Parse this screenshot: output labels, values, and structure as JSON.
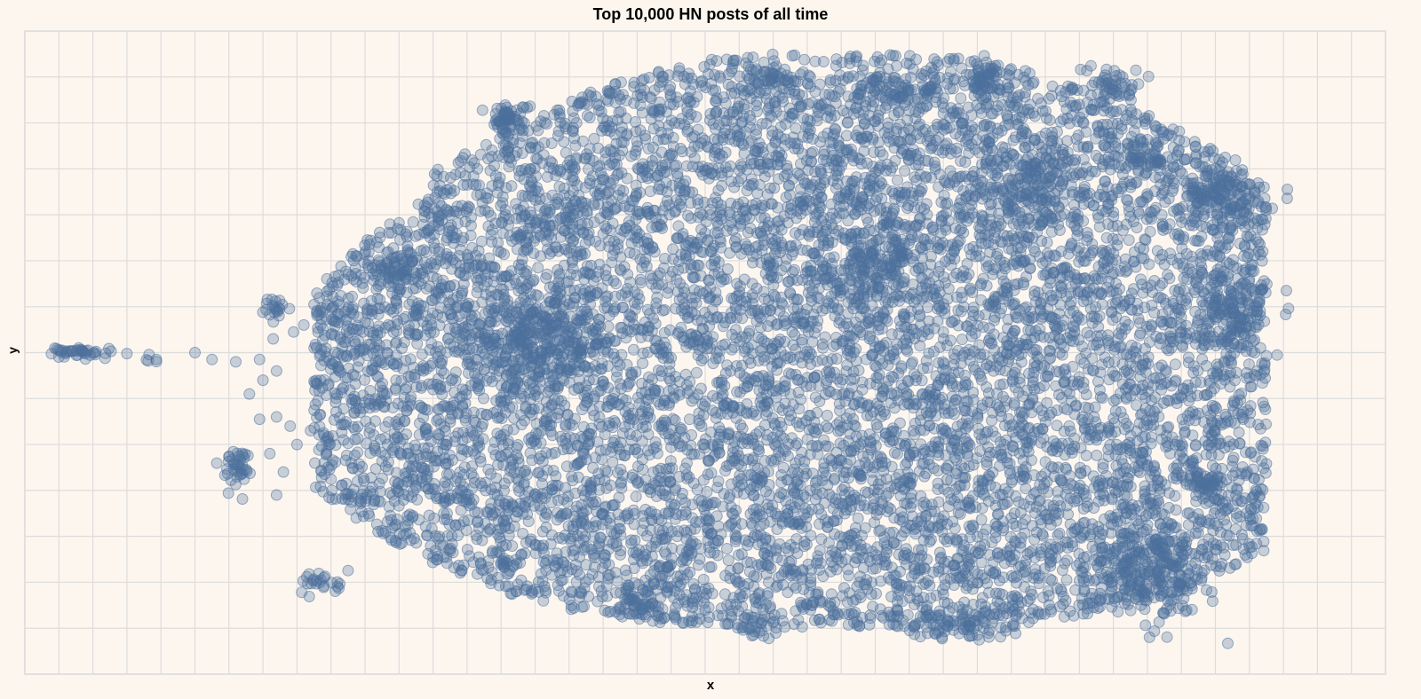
{
  "chart_data": {
    "type": "scatter",
    "title": "Top 10,000 HN posts of all time",
    "xlabel": "x",
    "ylabel": "y",
    "xlim": [
      0,
      40
    ],
    "ylim": [
      -7,
      7
    ],
    "grid": true,
    "tick_labels_shown": false,
    "point_count": 10000,
    "marker_color": "#4c6f9c",
    "marker_opacity": 0.3,
    "point_cloud": {
      "description_values": "estimated cluster centers in data units",
      "clusters": [
        {
          "x": 1.6,
          "y": 0.0,
          "sx": 0.5,
          "sy": 0.07,
          "n": 40
        },
        {
          "x": 3.6,
          "y": -0.1,
          "sx": 0.25,
          "sy": 0.1,
          "n": 6
        },
        {
          "x": 6.2,
          "y": -2.5,
          "sx": 0.2,
          "sy": 0.2,
          "n": 40
        },
        {
          "x": 7.4,
          "y": 1.0,
          "sx": 0.2,
          "sy": 0.12,
          "n": 20
        },
        {
          "x": 14.2,
          "y": 5.1,
          "sx": 0.3,
          "sy": 0.15,
          "n": 60
        },
        {
          "x": 10.9,
          "y": 1.8,
          "sx": 0.5,
          "sy": 0.18,
          "n": 60
        },
        {
          "x": 15.0,
          "y": 0.3,
          "sx": 1.0,
          "sy": 0.6,
          "n": 250
        },
        {
          "x": 18.1,
          "y": -5.5,
          "sx": 0.4,
          "sy": 0.2,
          "n": 40
        },
        {
          "x": 8.8,
          "y": -5.0,
          "sx": 0.3,
          "sy": 0.12,
          "n": 25
        },
        {
          "x": 22.0,
          "y": 6.0,
          "sx": 0.5,
          "sy": 0.1,
          "n": 40
        },
        {
          "x": 28.2,
          "y": 5.9,
          "sx": 0.3,
          "sy": 0.2,
          "n": 50
        },
        {
          "x": 32.0,
          "y": 5.8,
          "sx": 0.4,
          "sy": 0.2,
          "n": 50
        },
        {
          "x": 33.0,
          "y": 4.2,
          "sx": 0.3,
          "sy": 0.1,
          "n": 30
        },
        {
          "x": 35.2,
          "y": 3.4,
          "sx": 0.6,
          "sy": 0.3,
          "n": 120
        },
        {
          "x": 35.5,
          "y": 1.0,
          "sx": 0.5,
          "sy": 0.5,
          "n": 120
        },
        {
          "x": 34.7,
          "y": -2.9,
          "sx": 0.3,
          "sy": 0.2,
          "n": 40
        },
        {
          "x": 33.2,
          "y": -4.9,
          "sx": 0.8,
          "sy": 0.5,
          "n": 200
        },
        {
          "x": 25.6,
          "y": 5.7,
          "sx": 0.7,
          "sy": 0.2,
          "n": 60
        },
        {
          "x": 29.5,
          "y": 3.5,
          "sx": 0.8,
          "sy": 0.5,
          "n": 150
        },
        {
          "x": 25.0,
          "y": 2.0,
          "sx": 0.8,
          "sy": 0.6,
          "n": 150
        },
        {
          "x": 21.5,
          "y": -6.0,
          "sx": 0.3,
          "sy": 0.1,
          "n": 20
        },
        {
          "x": 27.5,
          "y": -6.0,
          "sx": 0.8,
          "sy": 0.15,
          "n": 60
        }
      ],
      "background_region": {
        "x_range": [
          8.5,
          36.5
        ],
        "y_range": [
          -6.5,
          6.5
        ],
        "n": 9000
      }
    }
  }
}
